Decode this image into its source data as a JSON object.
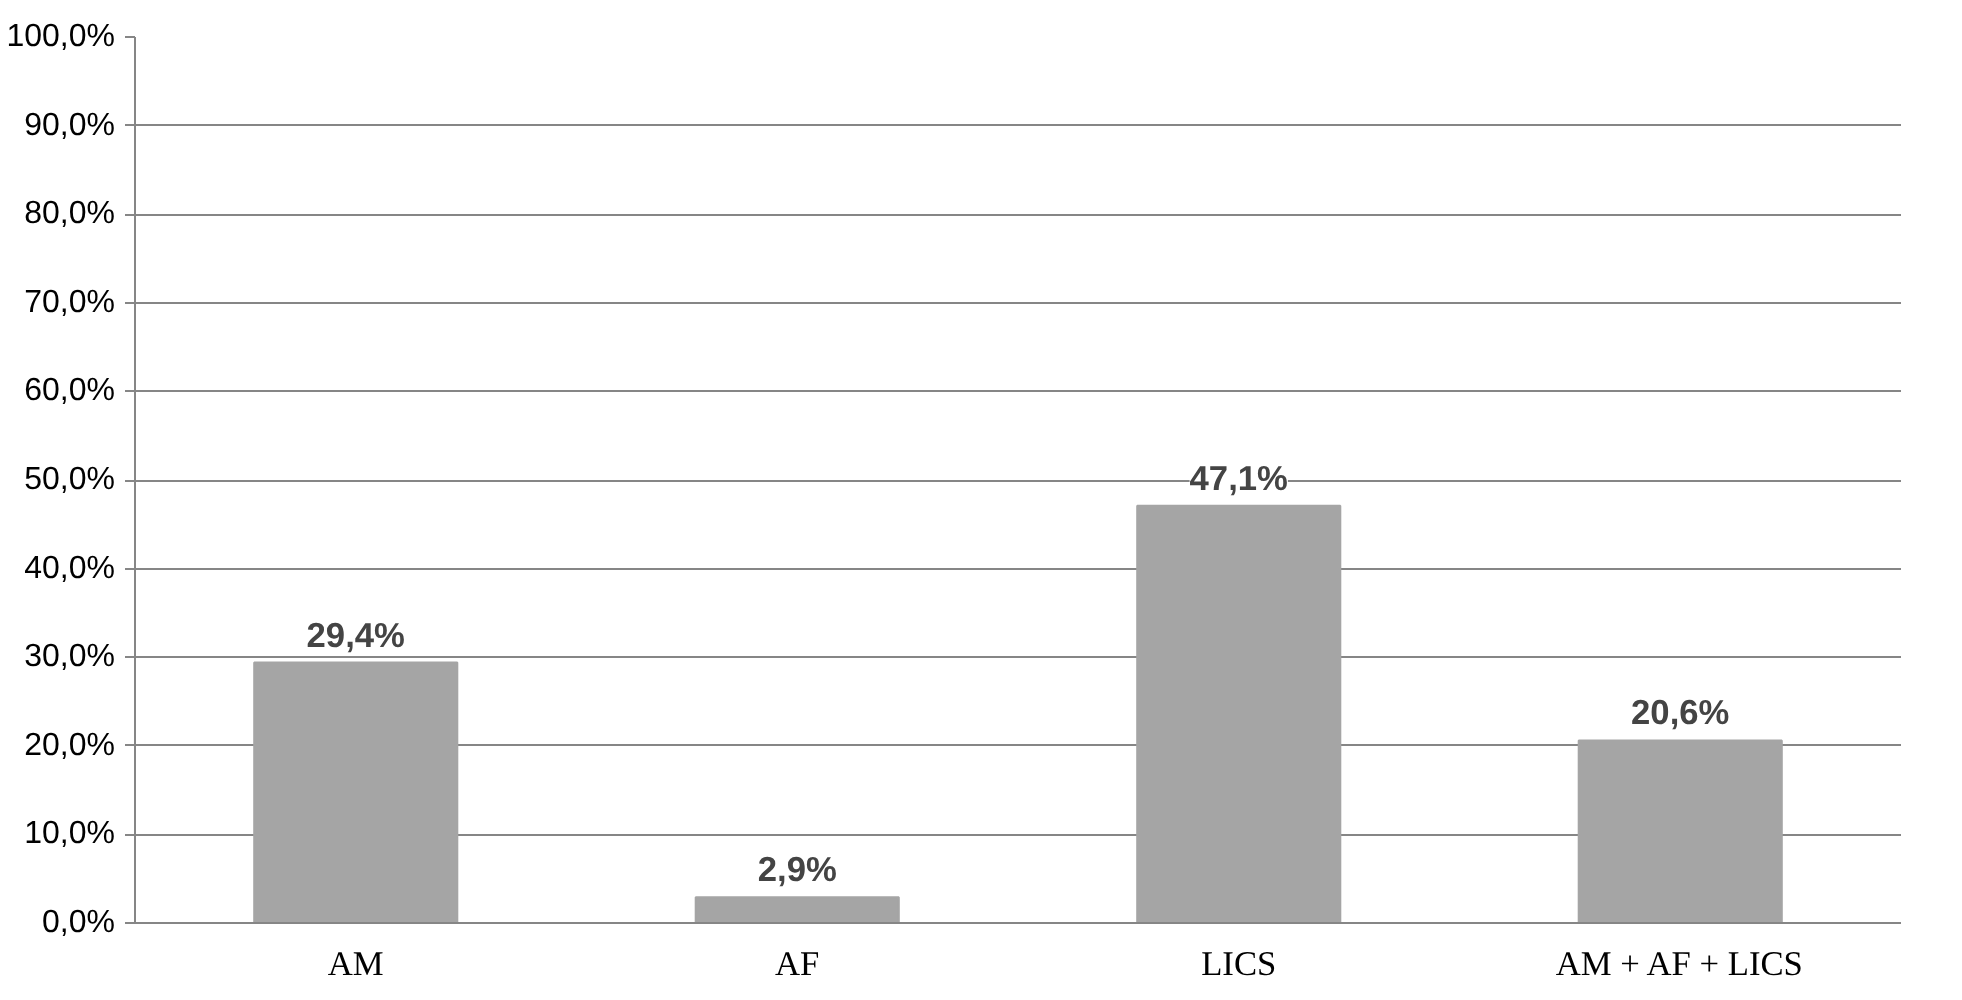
{
  "chart_data": {
    "type": "bar",
    "categories": [
      "AM",
      "AF",
      "LICS",
      "AM + AF + LICS"
    ],
    "values": [
      29.4,
      2.9,
      47.1,
      20.6
    ],
    "value_labels": [
      "29,4%",
      "2,9%",
      "47,1%",
      "20,6%"
    ],
    "color": "#a5a5a5",
    "ylim": [
      0,
      100
    ],
    "yticks": [
      {
        "value": 0,
        "label": "0,0%"
      },
      {
        "value": 10,
        "label": "10,0%"
      },
      {
        "value": 20,
        "label": "20,0%"
      },
      {
        "value": 30,
        "label": "30,0%"
      },
      {
        "value": 40,
        "label": "40,0%"
      },
      {
        "value": 50,
        "label": "50,0%"
      },
      {
        "value": 60,
        "label": "60,0%"
      },
      {
        "value": 70,
        "label": "70,0%"
      },
      {
        "value": 80,
        "label": "80,0%"
      },
      {
        "value": 90,
        "label": "90,0%"
      },
      {
        "value": 100,
        "label": "100,0%"
      }
    ],
    "grid": "y"
  }
}
